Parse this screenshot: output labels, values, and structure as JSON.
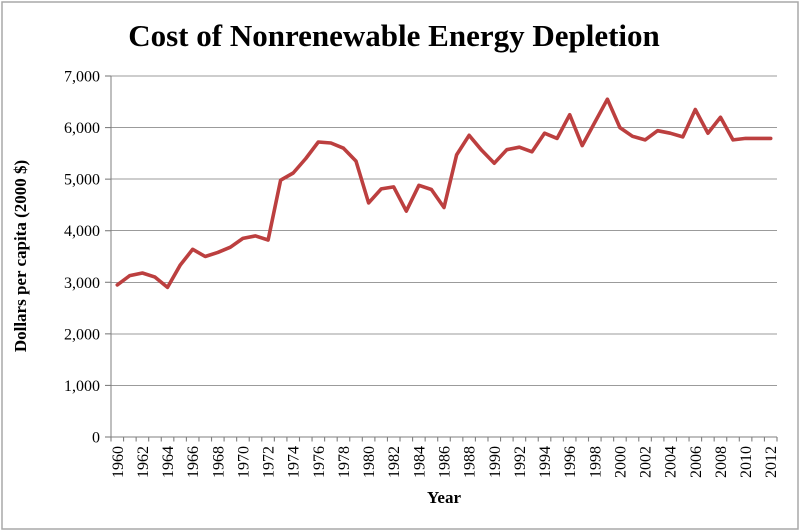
{
  "figure": {
    "title": "Cost of Nonrenewable Energy Depletion",
    "x_axis_title": "Year",
    "y_axis_title": "Dollars per capita (2000 $)"
  },
  "chart_data": {
    "type": "line",
    "title": "Cost of Nonrenewable Energy Depletion",
    "xlabel": "Year",
    "ylabel": "Dollars per capita (2000 $)",
    "x": [
      1960,
      1961,
      1962,
      1963,
      1964,
      1965,
      1966,
      1967,
      1968,
      1969,
      1970,
      1971,
      1972,
      1973,
      1974,
      1975,
      1976,
      1977,
      1978,
      1979,
      1980,
      1981,
      1982,
      1983,
      1984,
      1985,
      1986,
      1987,
      1988,
      1989,
      1990,
      1991,
      1992,
      1993,
      1994,
      1995,
      1996,
      1997,
      1998,
      1999,
      2000,
      2001,
      2002,
      2003,
      2004,
      2005,
      2006,
      2007,
      2008,
      2009,
      2010,
      2011,
      2012
    ],
    "values": [
      2950,
      3130,
      3180,
      3100,
      2900,
      3330,
      3640,
      3500,
      3580,
      3680,
      3850,
      3900,
      3820,
      4980,
      5120,
      5400,
      5720,
      5700,
      5600,
      5350,
      4540,
      4810,
      4850,
      4380,
      4880,
      4800,
      4450,
      5470,
      5850,
      5560,
      5310,
      5570,
      5620,
      5530,
      5890,
      5790,
      6250,
      5650,
      6100,
      6550,
      6000,
      5830,
      5760,
      5940,
      5890,
      5820,
      6350,
      5890,
      6200,
      5760,
      5790,
      5790,
      5790
    ],
    "ylim": [
      0,
      7000
    ],
    "ytick_interval": 1000,
    "xtick_label_interval": 2,
    "x_minor_ticks": "every-year",
    "grid": "horizontal-gridlines",
    "legend": "none",
    "line_color": "#BC3F3F",
    "axis_color": "#7F7F7F",
    "gridline_color": "#9B9B9B"
  }
}
